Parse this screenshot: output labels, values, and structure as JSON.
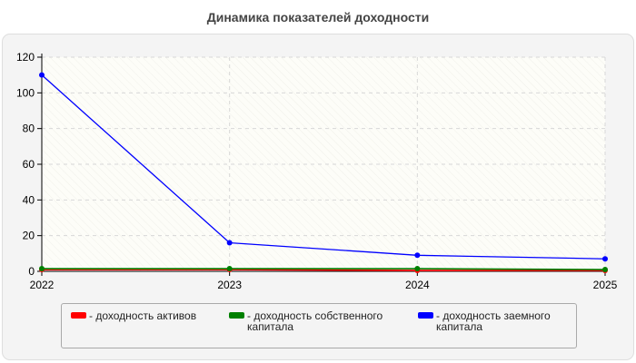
{
  "chart_data": {
    "type": "line",
    "title": "Динамика показателей доходности",
    "x": [
      "2022",
      "2023",
      "2024",
      "2025"
    ],
    "yticks": [
      "0",
      "20",
      "40",
      "60",
      "80",
      "100",
      "120"
    ],
    "ylim": [
      0,
      120
    ],
    "grid": true,
    "legend_position": "bottom",
    "series": [
      {
        "name": "- доходность активов",
        "color": "#ff0000",
        "values": [
          1,
          1,
          0.5,
          0.5
        ]
      },
      {
        "name": "- доходность собственного капитала",
        "color": "#008000",
        "values": [
          1.5,
          1.5,
          1.5,
          1
        ]
      },
      {
        "name": "- доходность заемного капитала",
        "color": "#0000ff",
        "values": [
          110,
          16,
          9,
          7
        ]
      }
    ]
  }
}
